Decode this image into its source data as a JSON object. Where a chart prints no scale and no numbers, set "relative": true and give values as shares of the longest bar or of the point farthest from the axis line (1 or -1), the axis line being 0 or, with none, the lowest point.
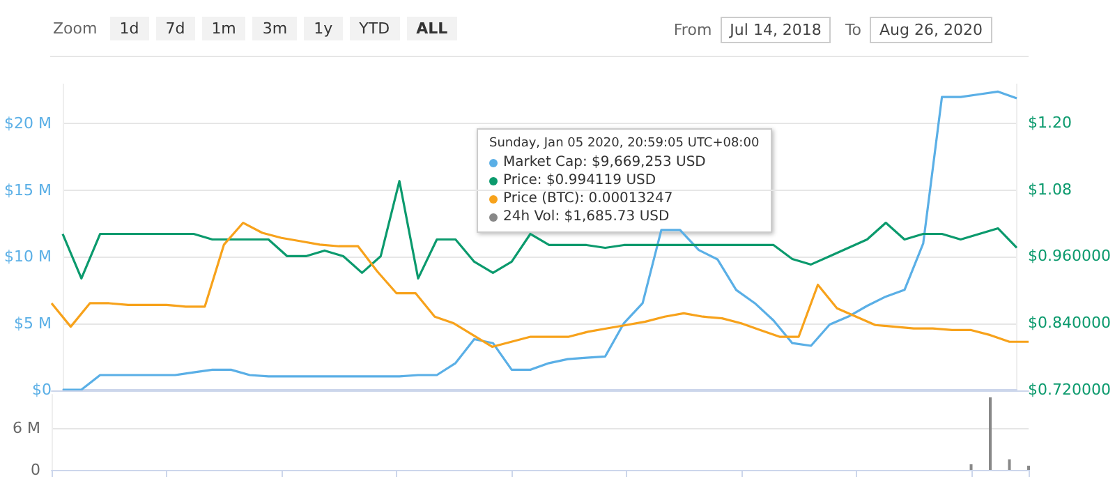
{
  "chart_data": [
    {
      "type": "line",
      "categories": [
        null,
        null,
        null,
        null,
        null,
        null,
        null,
        null,
        null,
        null,
        null,
        null,
        null,
        null,
        null,
        null,
        null,
        null,
        null,
        null,
        null,
        null,
        null,
        null,
        null,
        null,
        null,
        null,
        null,
        null,
        null,
        null,
        null,
        null,
        null,
        null,
        null,
        null,
        null,
        null,
        null,
        null,
        null,
        null,
        null,
        null,
        null,
        null,
        null,
        null,
        null,
        null
      ],
      "series": [
        {
          "color": "#5aafe6",
          "values": [
            0,
            0,
            1.1,
            1.1,
            1.1,
            1.1,
            1.1,
            1.3,
            1.5,
            1.5,
            1.1,
            1.0,
            1.0,
            1.0,
            1.0,
            1.0,
            1.0,
            1.0,
            1.0,
            1.1,
            1.1,
            2.0,
            3.8,
            3.5,
            1.5,
            1.5,
            2.0,
            2.3,
            2.4,
            2.5,
            5.0,
            6.5,
            12.0,
            12.0,
            10.5,
            9.8,
            7.5,
            6.5,
            5.2,
            3.5,
            3.3,
            4.9,
            5.5,
            6.3,
            7.0,
            7.5,
            11.0,
            22.0,
            22.0,
            22.2,
            22.4,
            21.9
          ]
        },
        {
          "color": "#0b9a6d",
          "axis": "y2",
          "values": [
            1.0,
            0.92,
            1.0,
            1.0,
            1.0,
            1.0,
            1.0,
            1.0,
            0.99,
            0.99,
            0.99,
            0.99,
            0.96,
            0.96,
            0.97,
            0.96,
            0.93,
            0.96,
            1.095,
            0.92,
            0.99,
            0.99,
            0.95,
            0.93,
            0.95,
            1.0,
            0.98,
            0.98,
            0.98,
            0.975,
            0.98,
            0.98,
            0.98,
            0.98,
            0.98,
            0.98,
            0.98,
            0.98,
            0.98,
            0.955,
            0.945,
            0.96,
            0.975,
            0.99,
            1.02,
            0.99,
            1.0,
            1.0,
            0.99,
            1.0,
            1.01,
            0.975
          ]
        }
      ],
      "ylim": [
        0,
        23
      ],
      "yticks": [
        {
          "value": 0,
          "label": "$0"
        },
        {
          "value": 5,
          "label": "$5 M"
        },
        {
          "value": 10,
          "label": "$10 M"
        },
        {
          "value": 15,
          "label": "$15 M"
        },
        {
          "value": 20,
          "label": "$20 M"
        }
      ],
      "y2lim": [
        0.72,
        1.27
      ],
      "y2ticks": [
        {
          "value": 0.72,
          "label": "$0.720000"
        },
        {
          "value": 0.84,
          "label": "$0.840000"
        },
        {
          "value": 0.96,
          "label": "$0.960000"
        },
        {
          "value": 1.08,
          "label": "$1.08"
        },
        {
          "value": 1.2,
          "label": "$1.20"
        }
      ],
      "tick_labels": "y",
      "grid": "y",
      "marker": "none",
      "line_style": "solid",
      "annotations": [
        "Zoom",
        "1d",
        "7d",
        "1m",
        "3m",
        "1y",
        "YTD",
        "ALL",
        "From",
        "Jul 14, 2018",
        "To",
        "Aug 26, 2020",
        "Sunday, Jan 05 2020, 20:59:05 UTC+08:00",
        "Market Cap: $9,669,253 USD",
        "Price: $0.994119 USD",
        "Price (BTC): 0.00013247",
        "24h Vol: $1,685.73 USD"
      ]
    },
    {
      "type": "line",
      "relative": true,
      "categories": [
        null,
        null,
        null,
        null,
        null,
        null,
        null,
        null,
        null,
        null,
        null,
        null,
        null,
        null,
        null,
        null,
        null,
        null,
        null,
        null,
        null,
        null,
        null,
        null,
        null,
        null,
        null,
        null,
        null,
        null,
        null,
        null,
        null,
        null,
        null,
        null,
        null,
        null,
        null,
        null,
        null,
        null,
        null,
        null,
        null,
        null,
        null,
        null,
        null,
        null,
        null,
        null
      ],
      "series": [
        {
          "color": "#f7a21b",
          "values": [
            0.52,
            0.38,
            0.52,
            0.52,
            0.51,
            0.51,
            0.51,
            0.5,
            0.5,
            0.87,
            1,
            0.94,
            0.91,
            0.89,
            0.87,
            0.86,
            0.86,
            0.71,
            0.58,
            0.58,
            0.44,
            0.4,
            0.33,
            0.26,
            0.29,
            0.32,
            0.32,
            0.32,
            0.35,
            0.37,
            0.39,
            0.41,
            0.44,
            0.46,
            0.44,
            0.43,
            0.4,
            0.36,
            0.32,
            0.32,
            0.63,
            0.49,
            0.44,
            0.39,
            0.38,
            0.37,
            0.37,
            0.36,
            0.36,
            0.33,
            0.29,
            0.29
          ]
        }
      ],
      "tick_labels": false,
      "marker": "none",
      "line_style": "solid"
    },
    {
      "type": "bar",
      "categories": [
        null,
        null,
        null,
        null,
        null,
        null,
        null,
        null,
        null,
        null,
        null,
        null,
        null,
        null,
        null,
        null,
        null,
        null,
        null,
        null,
        null,
        null,
        null,
        null,
        null,
        null,
        null,
        null,
        null,
        null,
        null,
        null,
        null,
        null,
        null,
        null,
        null,
        null,
        null,
        null,
        null,
        null,
        null,
        null,
        null,
        null,
        null,
        null,
        null,
        null,
        null,
        null
      ],
      "series": [
        {
          "color": "#888888",
          "values": [
            0,
            0,
            0,
            0,
            0,
            0,
            0,
            0,
            0,
            0,
            0,
            0,
            0,
            0,
            0,
            0,
            0,
            0,
            0,
            0,
            0,
            0,
            0,
            0,
            0,
            0,
            0,
            0,
            0,
            0,
            0,
            0,
            0,
            0,
            0,
            0,
            0,
            0,
            0,
            0,
            0,
            0,
            0,
            0,
            0,
            0,
            0,
            0,
            0.8,
            10.4,
            1.5,
            0.6
          ]
        }
      ],
      "ylim": [
        0,
        10.8
      ],
      "yticks": [
        0,
        {
          "value": 6,
          "label": "6 M"
        }
      ],
      "tick_labels": "y",
      "grid": "y"
    }
  ]
}
